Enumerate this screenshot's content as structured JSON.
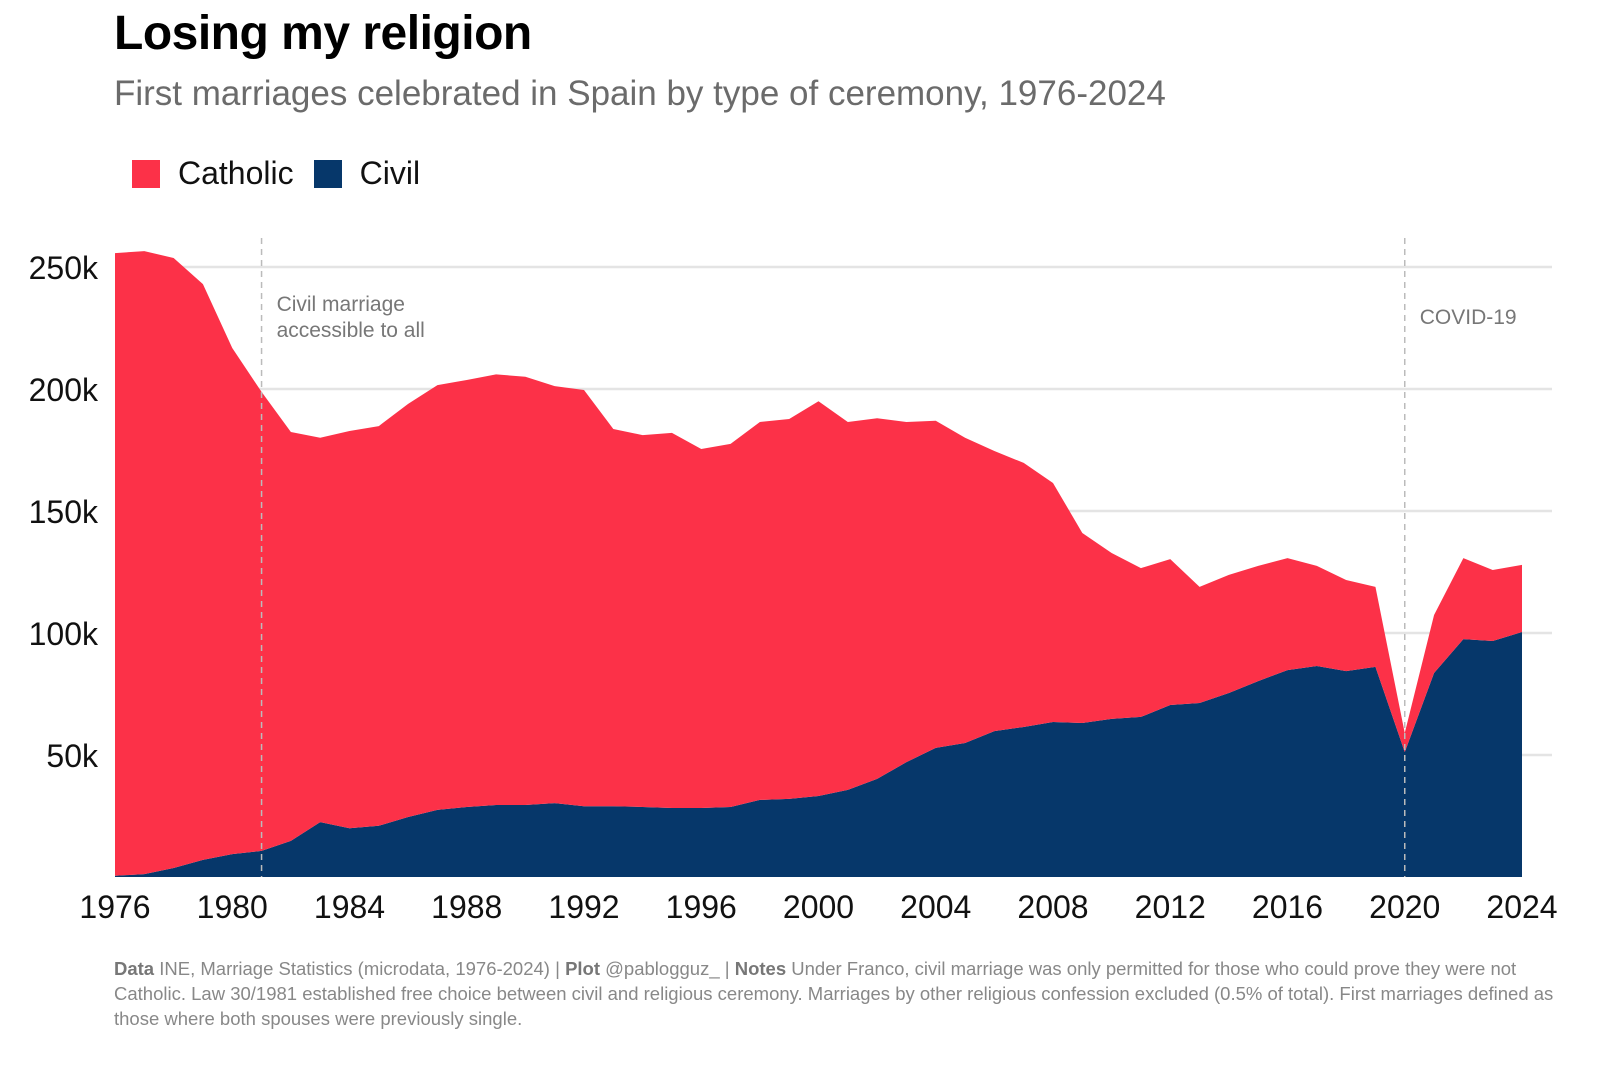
{
  "title": "Losing my religion",
  "subtitle": "First marriages celebrated in Spain by type of ceremony, 1976-2024",
  "footer": {
    "data_label": "Data",
    "data_text": "INE, Marriage Statistics (microdata, 1976-2024) |",
    "plot_label": "Plot",
    "plot_text": "@pablogguz_ |",
    "notes_label": "Notes",
    "notes_text": "Under Franco, civil marriage was only permitted for those who could prove they were not Catholic. Law 30/1981 established free choice between civil and religious ceremony. Marriages by other religious confession excluded (0.5% of total). First marriages defined as those where both spouses were previously single."
  },
  "chart_data": {
    "type": "area",
    "stacked": true,
    "title": "Losing my religion",
    "xlabel": "",
    "ylabel": "",
    "units": "thousands",
    "x": [
      1976,
      1977,
      1978,
      1979,
      1980,
      1981,
      1982,
      1983,
      1984,
      1985,
      1986,
      1987,
      1988,
      1989,
      1990,
      1991,
      1992,
      1993,
      1994,
      1995,
      1996,
      1997,
      1998,
      1999,
      2000,
      2001,
      2002,
      2003,
      2004,
      2005,
      2006,
      2007,
      2008,
      2009,
      2010,
      2011,
      2012,
      2013,
      2014,
      2015,
      2016,
      2017,
      2018,
      2019,
      2020,
      2021,
      2022,
      2023,
      2024
    ],
    "series": [
      {
        "name": "Civil",
        "color": "#06376a",
        "values": [
          0.5,
          1.2,
          3.7,
          7,
          9.4,
          10.7,
          14.8,
          22.5,
          20,
          21,
          24.6,
          27.5,
          28.7,
          29.5,
          29.5,
          30.3,
          29,
          29,
          28.7,
          28.3,
          28.3,
          28.7,
          31.6,
          32,
          33.2,
          35.7,
          40.2,
          47.1,
          52.9,
          54.9,
          59.8,
          61.5,
          63.5,
          63.1,
          64.8,
          65.6,
          70.5,
          71.3,
          75.4,
          80.3,
          84.8,
          86.5,
          84.4,
          86.1,
          51.2,
          83.6,
          97.5,
          96.7,
          100.4
        ]
      },
      {
        "name": "Catholic",
        "color": "#fc3148",
        "values": [
          255.2,
          255.3,
          250.0,
          236.0,
          207.4,
          188.1,
          167.6,
          157.5,
          162.8,
          163.8,
          169.3,
          174.1,
          175.0,
          176.5,
          175.5,
          170.9,
          170.6,
          154.6,
          152.4,
          153.7,
          147.1,
          148.8,
          154.9,
          155.7,
          161.8,
          150.8,
          147.8,
          139.4,
          134.1,
          125.1,
          114.8,
          108.2,
          98.0,
          77.9,
          68.0,
          61.0,
          59.8,
          47.6,
          48.4,
          47.2,
          45.9,
          41.0,
          37.3,
          32.8,
          7.8,
          23.8,
          33.2,
          29.1,
          27.5
        ]
      }
    ],
    "legend": {
      "entries": [
        "Catholic",
        "Civil"
      ],
      "placement": "top-left"
    },
    "xlim": [
      1976,
      2024
    ],
    "ylim": [
      0,
      250
    ],
    "xticks": [
      1976,
      1980,
      1984,
      1988,
      1992,
      1996,
      2000,
      2004,
      2008,
      2012,
      2016,
      2020,
      2024
    ],
    "xtick_labels": [
      "1976",
      "1980",
      "1984",
      "1988",
      "1992",
      "1996",
      "2000",
      "2004",
      "2008",
      "2012",
      "2016",
      "2020",
      "2024"
    ],
    "yticks": [
      50,
      100,
      150,
      200,
      250
    ],
    "ytick_labels": [
      "50k",
      "100k",
      "150k",
      "200k",
      "250k"
    ],
    "grid": "horizontal",
    "annotations": [
      {
        "x": 1981,
        "lines": [
          "Civil marriage",
          "accessible to all"
        ]
      },
      {
        "x": 2020,
        "lines": [
          "COVID-19"
        ]
      }
    ]
  }
}
